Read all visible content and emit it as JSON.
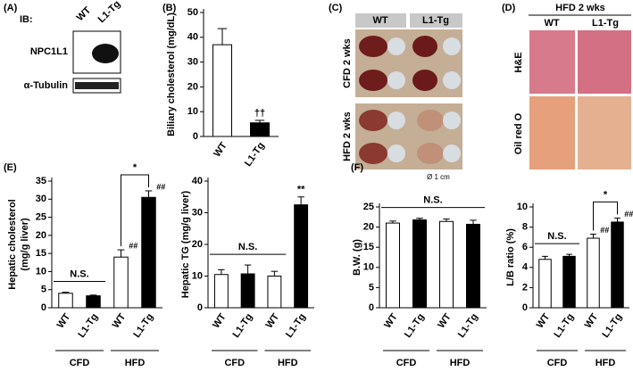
{
  "panel_a": {
    "label": "(A)",
    "ib": "IB:",
    "lanes": [
      "WT",
      "L1-Tg"
    ],
    "rows": [
      "NPC1L1",
      "α-Tubulin"
    ]
  },
  "panel_c": {
    "label": "(C)",
    "columns": [
      "WT",
      "L1-Tg"
    ],
    "rows": [
      "CFD 2 wks",
      "HFD 2 wks"
    ],
    "scale": "Ø 1 cm"
  },
  "panel_d": {
    "label": "(D)",
    "title": "HFD 2 wks",
    "columns": [
      "WT",
      "L1-Tg"
    ],
    "rows": [
      "H&E",
      "Oil red O"
    ]
  },
  "chart_data": [
    {
      "type": "bar",
      "panel": "(B)",
      "ylabel": "Biliary cholesterol (mg/dL)",
      "categories": [
        "WT",
        "L1-Tg"
      ],
      "values": [
        37,
        5.5
      ],
      "errors": [
        6.5,
        1
      ],
      "colors": [
        "#ffffff",
        "#000000"
      ],
      "ylim": [
        0,
        50
      ],
      "yticks": [
        0,
        10,
        20,
        30,
        40,
        50
      ],
      "annotations": [
        {
          "text": "††",
          "span": [
            1,
            1
          ]
        }
      ]
    },
    {
      "type": "bar",
      "panel": "(E)",
      "ylabel": [
        "Hepatic cholesterol",
        "(mg/g liver)"
      ],
      "categories": [
        "WT",
        "L1-Tg",
        "WT",
        "L1-Tg"
      ],
      "groups": [
        "CFD",
        "HFD"
      ],
      "values": [
        4,
        3.3,
        14,
        30.5
      ],
      "errors": [
        0.3,
        0.2,
        2,
        1.8
      ],
      "colors": [
        "#ffffff",
        "#000000",
        "#ffffff",
        "#000000"
      ],
      "bar_labels": [
        null,
        null,
        "##",
        "##"
      ],
      "ylim": [
        0,
        35
      ],
      "yticks": [
        0,
        5,
        10,
        15,
        20,
        25,
        30,
        35
      ],
      "annotations": [
        {
          "text": "N.S.",
          "span": [
            0,
            1
          ]
        },
        {
          "text": "*",
          "span": [
            2,
            3
          ],
          "bracket": true
        }
      ]
    },
    {
      "type": "bar",
      "ylabel": "Hepatic TG (mg/g liver)",
      "categories": [
        "WT",
        "L1-Tg",
        "WT",
        "L1-Tg"
      ],
      "groups": [
        "CFD",
        "HFD"
      ],
      "values": [
        10.5,
        10.7,
        10,
        32.5
      ],
      "errors": [
        1.5,
        2.8,
        1.5,
        2.5
      ],
      "colors": [
        "#ffffff",
        "#000000",
        "#ffffff",
        "#000000"
      ],
      "ylim": [
        0,
        40
      ],
      "yticks": [
        0,
        10,
        20,
        30,
        40
      ],
      "annotations": [
        {
          "text": "N.S.",
          "span": [
            0,
            2
          ]
        },
        {
          "text": "**",
          "span": [
            3,
            3
          ]
        }
      ]
    },
    {
      "type": "bar",
      "panel": "(F)",
      "ylabel": "B.W. (g)",
      "categories": [
        "WT",
        "L1-Tg",
        "WT",
        "L1-Tg"
      ],
      "groups": [
        "CFD",
        "HFD"
      ],
      "values": [
        21,
        21.8,
        21.4,
        20.7
      ],
      "errors": [
        0.5,
        0.4,
        0.6,
        1
      ],
      "colors": [
        "#ffffff",
        "#000000",
        "#ffffff",
        "#000000"
      ],
      "ylim": [
        0,
        25
      ],
      "yticks": [
        0,
        5,
        10,
        15,
        20,
        25
      ],
      "annotations": [
        {
          "text": "N.S.",
          "span": [
            0,
            3
          ]
        }
      ]
    },
    {
      "type": "bar",
      "ylabel": "L/B ratio (%)",
      "categories": [
        "WT",
        "L1-Tg",
        "WT",
        "L1-Tg"
      ],
      "groups": [
        "CFD",
        "HFD"
      ],
      "values": [
        4.8,
        5.1,
        6.9,
        8.5
      ],
      "errors": [
        0.3,
        0.2,
        0.4,
        0.4
      ],
      "colors": [
        "#ffffff",
        "#000000",
        "#ffffff",
        "#000000"
      ],
      "bar_labels": [
        null,
        null,
        "##",
        "##"
      ],
      "ylim": [
        0,
        10
      ],
      "yticks": [
        0,
        2,
        4,
        6,
        8,
        10
      ],
      "annotations": [
        {
          "text": "N.S.",
          "span": [
            0,
            1
          ]
        },
        {
          "text": "*",
          "span": [
            2,
            3
          ],
          "bracket": true
        }
      ]
    }
  ]
}
